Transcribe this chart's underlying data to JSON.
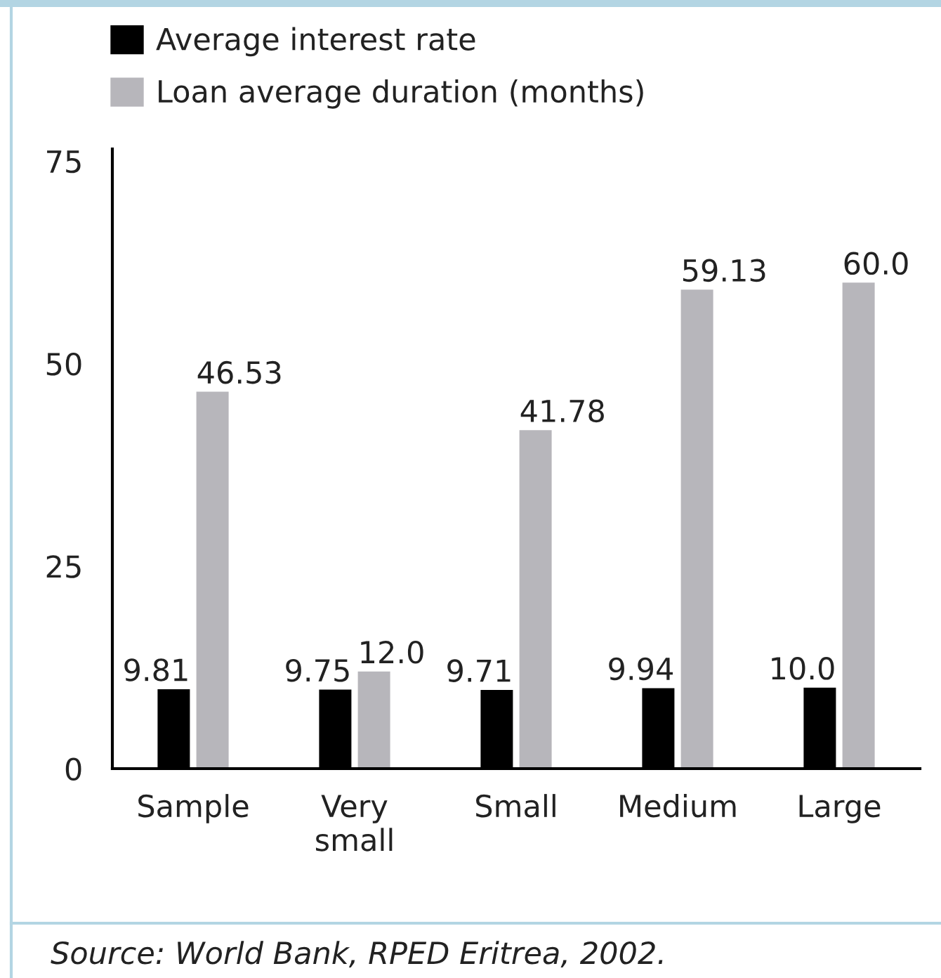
{
  "chart_data": {
    "type": "bar",
    "categories": [
      "Sample",
      "Very\nsmall",
      "Small",
      "Medium",
      "Large"
    ],
    "series": [
      {
        "name": "Average interest rate",
        "color": "#000000",
        "values": [
          9.81,
          9.75,
          9.71,
          9.94,
          10.0
        ],
        "value_labels": [
          "9.81",
          "9.75",
          "9.71",
          "9.94",
          "10.0"
        ]
      },
      {
        "name": "Loan average duration (months)",
        "color": "#b7b6bb",
        "values": [
          46.53,
          12.0,
          41.78,
          59.13,
          60.0
        ],
        "value_labels": [
          "46.53",
          "12.0",
          "41.78",
          "59.13",
          "60.0"
        ]
      }
    ],
    "ylim": [
      0,
      76.5
    ],
    "yticks": [
      0,
      25,
      50,
      75
    ],
    "legend": "top left",
    "annotations": [
      "Source: World Bank, RPED Eritrea, 2002."
    ]
  }
}
